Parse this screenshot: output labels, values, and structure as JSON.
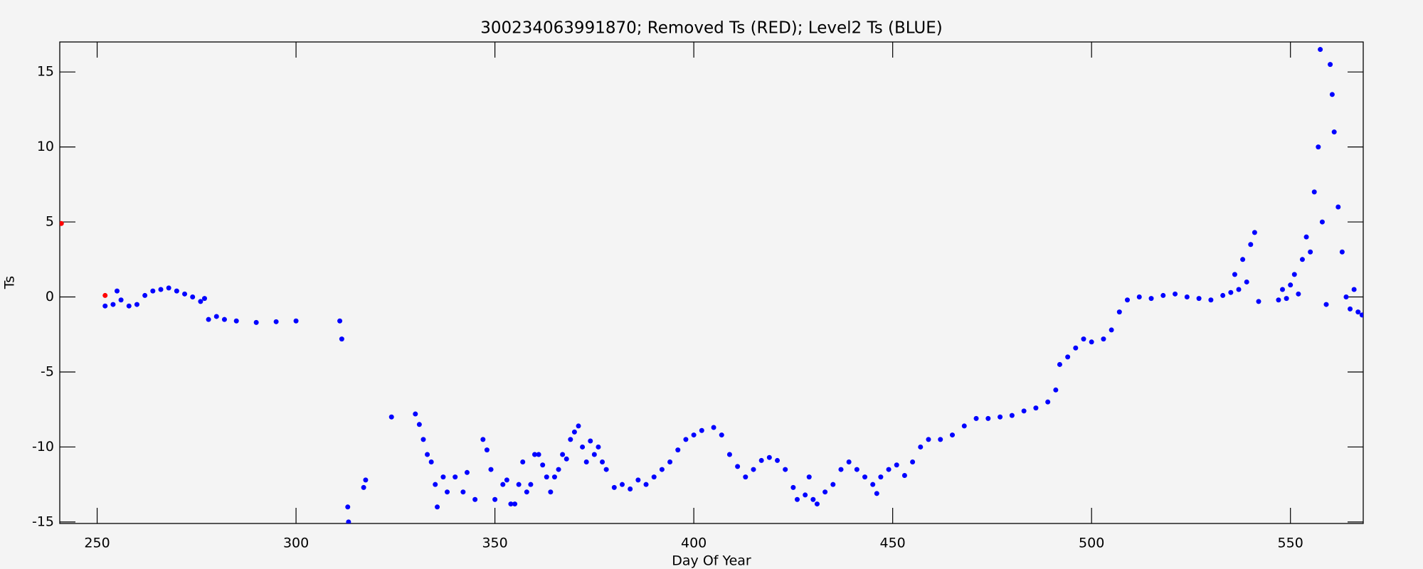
{
  "chart_data": {
    "type": "scatter",
    "title": "300234063991870; Removed Ts (RED); Level2 Ts (BLUE)",
    "x_label": "Day Of Year",
    "y_label": "Ts",
    "xlim": [
      240.6,
      568.3
    ],
    "ylim": [
      -15.1,
      17
    ],
    "xticks": [
      250,
      300,
      350,
      400,
      450,
      500,
      550
    ],
    "yticks": [
      -15,
      -10,
      -5,
      0,
      5,
      10,
      15
    ],
    "series": [
      {
        "color": "#0000ff",
        "x": [
          252,
          254,
          255,
          256,
          258,
          260,
          262,
          264,
          266,
          268,
          270,
          272,
          274,
          276,
          277,
          278,
          280,
          282,
          285,
          290,
          295,
          300,
          311,
          311.5,
          313,
          313.2,
          317,
          317.5,
          324,
          330,
          331,
          332,
          333,
          334,
          335,
          335.5,
          337,
          338,
          340,
          342,
          343,
          345,
          347,
          348,
          349,
          350,
          352,
          353,
          354,
          355,
          356,
          357,
          358,
          359,
          360,
          361,
          362,
          363,
          364,
          365,
          366,
          367,
          368,
          369,
          370,
          371,
          372,
          373,
          374,
          375,
          376,
          377,
          378,
          380,
          382,
          384,
          386,
          388,
          390,
          392,
          394,
          396,
          398,
          400,
          402,
          405,
          407,
          409,
          411,
          413,
          415,
          417,
          419,
          421,
          423,
          425,
          426,
          428,
          429,
          430,
          431,
          433,
          435,
          437,
          439,
          441,
          443,
          445,
          446,
          447,
          449,
          451,
          453,
          455,
          457,
          459,
          462,
          465,
          468,
          471,
          474,
          477,
          480,
          483,
          486,
          489,
          491,
          492,
          494,
          496,
          498,
          500,
          503,
          505,
          507,
          509,
          512,
          515,
          518,
          521,
          524,
          527,
          530,
          533,
          535,
          536,
          537,
          538,
          539,
          540,
          541,
          542,
          547,
          548,
          549,
          550,
          551,
          552,
          553,
          554,
          555,
          556,
          557,
          557.5,
          558,
          559,
          560,
          560.5,
          561,
          562,
          563,
          564,
          565,
          566,
          567,
          568
        ],
        "y": [
          -0.6,
          -0.5,
          0.4,
          -0.2,
          -0.6,
          -0.5,
          0.1,
          0.4,
          0.5,
          0.6,
          0.4,
          0.2,
          0.0,
          -0.3,
          -0.1,
          -1.5,
          -1.3,
          -1.5,
          -1.6,
          -1.7,
          -1.65,
          -1.6,
          -1.6,
          -2.8,
          -14,
          -15,
          -12.7,
          -12.2,
          -8,
          -7.8,
          -8.5,
          -9.5,
          -10.5,
          -11,
          -12.5,
          -14,
          -12,
          -13,
          -12,
          -13,
          -11.7,
          -13.5,
          -9.5,
          -10.2,
          -11.5,
          -13.5,
          -12.5,
          -12.2,
          -13.8,
          -13.8,
          -12.5,
          -11,
          -13,
          -12.5,
          -10.5,
          -10.5,
          -11.2,
          -12,
          -13,
          -12,
          -11.5,
          -10.5,
          -10.8,
          -9.5,
          -9,
          -8.6,
          -10,
          -11,
          -9.6,
          -10.5,
          -10,
          -11,
          -11.5,
          -12.7,
          -12.5,
          -12.8,
          -12.2,
          -12.5,
          -12,
          -11.5,
          -11,
          -10.2,
          -9.5,
          -9.2,
          -8.9,
          -8.7,
          -9.2,
          -10.5,
          -11.3,
          -12,
          -11.5,
          -10.9,
          -10.7,
          -10.9,
          -11.5,
          -12.7,
          -13.5,
          -13.2,
          -12,
          -13.5,
          -13.8,
          -13,
          -12.5,
          -11.5,
          -11,
          -11.5,
          -12,
          -12.5,
          -13.1,
          -12,
          -11.5,
          -11.2,
          -11.9,
          -11,
          -10,
          -9.5,
          -9.5,
          -9.2,
          -8.6,
          -8.1,
          -8.1,
          -8,
          -7.9,
          -7.6,
          -7.4,
          -7,
          -6.2,
          -4.5,
          -4,
          -3.4,
          -2.8,
          -3,
          -2.8,
          -2.2,
          -1,
          -0.2,
          0,
          -0.1,
          0.1,
          0.2,
          0,
          -0.1,
          -0.2,
          0.1,
          0.3,
          1.5,
          0.5,
          2.5,
          1,
          3.5,
          4.3,
          -0.3,
          -0.2,
          0.5,
          -0.1,
          0.8,
          1.5,
          0.2,
          2.5,
          4,
          3,
          7,
          10,
          16.5,
          5,
          -0.5,
          15.5,
          13.5,
          11,
          6,
          3,
          0,
          -0.8,
          0.5,
          -1,
          -1.2
        ]
      },
      {
        "color": "#ff0000",
        "x": [
          241,
          252
        ],
        "y": [
          4.9,
          0.1
        ]
      }
    ]
  }
}
